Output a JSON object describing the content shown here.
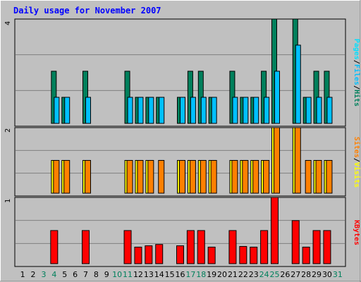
{
  "title": "Daily usage for November 2007",
  "colors": {
    "background": "#c0c0c0",
    "title": "#0000ff",
    "hits": "#00805c",
    "files": "#00c0ff",
    "pages": "#00e0ff",
    "sites": "#ff8000",
    "visits": "#ffff00",
    "kbytes": "#ff0000",
    "weekend_day": "#00805c",
    "weekday": "#000000",
    "grid": "#808080"
  },
  "chart_data": [
    {
      "type": "bar",
      "panel": "hits-files-pages",
      "legend": [
        "Pages",
        "Files",
        "Hits"
      ],
      "max_label": "4",
      "ylim": [
        0,
        4
      ],
      "categories": [
        "1",
        "2",
        "3",
        "4",
        "5",
        "6",
        "7",
        "8",
        "9",
        "10",
        "11",
        "12",
        "13",
        "14",
        "15",
        "16",
        "17",
        "18",
        "19",
        "20",
        "21",
        "22",
        "23",
        "24",
        "25",
        "26",
        "27",
        "28",
        "29",
        "30",
        "31"
      ],
      "series": [
        {
          "name": "Hits",
          "values": [
            0,
            0,
            0,
            2,
            1,
            0,
            2,
            0,
            0,
            0,
            2,
            1,
            1,
            1,
            0,
            1,
            2,
            2,
            1,
            0,
            2,
            1,
            1,
            2,
            4,
            0,
            4,
            1,
            2,
            2,
            0
          ]
        },
        {
          "name": "Files",
          "values": [
            0,
            0,
            0,
            1,
            1,
            0,
            1,
            0,
            0,
            0,
            1,
            1,
            1,
            1,
            0,
            1,
            1,
            1,
            1,
            0,
            1,
            1,
            1,
            1,
            2,
            0,
            3,
            1,
            1,
            1,
            0
          ]
        },
        {
          "name": "Pages",
          "values": [
            0,
            0,
            0,
            0,
            0,
            0,
            0,
            0,
            0,
            0,
            0,
            0,
            0,
            0,
            0,
            0,
            0,
            0,
            0,
            0,
            0,
            0,
            0,
            0,
            0,
            0,
            0,
            0,
            0,
            0,
            0
          ]
        }
      ]
    },
    {
      "type": "bar",
      "panel": "visits-sites",
      "legend": [
        "Sites",
        "Visits"
      ],
      "max_label": "2",
      "ylim": [
        0,
        2
      ],
      "categories": [
        "1",
        "2",
        "3",
        "4",
        "5",
        "6",
        "7",
        "8",
        "9",
        "10",
        "11",
        "12",
        "13",
        "14",
        "15",
        "16",
        "17",
        "18",
        "19",
        "20",
        "21",
        "22",
        "23",
        "24",
        "25",
        "26",
        "27",
        "28",
        "29",
        "30",
        "31"
      ],
      "series": [
        {
          "name": "Visits",
          "values": [
            0,
            0,
            0,
            1,
            1,
            0,
            1,
            0,
            0,
            0,
            1,
            1,
            1,
            0,
            0,
            1,
            1,
            1,
            1,
            0,
            1,
            1,
            1,
            1,
            2,
            0,
            2,
            0,
            1,
            1,
            0
          ]
        },
        {
          "name": "Sites",
          "values": [
            0,
            0,
            0,
            1,
            1,
            0,
            1,
            0,
            0,
            0,
            1,
            1,
            1,
            1,
            0,
            1,
            1,
            1,
            1,
            0,
            1,
            1,
            1,
            1,
            2,
            0,
            2,
            1,
            1,
            1,
            0
          ]
        }
      ]
    },
    {
      "type": "bar",
      "panel": "kbytes",
      "legend": [
        "KBytes"
      ],
      "max_label": "1",
      "ylim": [
        0,
        1
      ],
      "categories": [
        "1",
        "2",
        "3",
        "4",
        "5",
        "6",
        "7",
        "8",
        "9",
        "10",
        "11",
        "12",
        "13",
        "14",
        "15",
        "16",
        "17",
        "18",
        "19",
        "20",
        "21",
        "22",
        "23",
        "24",
        "25",
        "26",
        "27",
        "28",
        "29",
        "30",
        "31"
      ],
      "series": [
        {
          "name": "KBytes",
          "values": [
            0,
            0,
            0,
            0.5,
            0,
            0,
            0.5,
            0,
            0,
            0,
            0.5,
            0.25,
            0.27,
            0.29,
            0,
            0.27,
            0.5,
            0.5,
            0.25,
            0,
            0.5,
            0.26,
            0.25,
            0.5,
            1,
            0,
            0.65,
            0.25,
            0.5,
            0.5,
            0
          ]
        }
      ]
    }
  ],
  "days": [
    "1",
    "2",
    "3",
    "4",
    "5",
    "6",
    "7",
    "8",
    "9",
    "10",
    "11",
    "12",
    "13",
    "14",
    "15",
    "16",
    "17",
    "18",
    "19",
    "20",
    "21",
    "22",
    "23",
    "24",
    "25",
    "26",
    "27",
    "28",
    "29",
    "30",
    "31"
  ],
  "weekend_days": [
    "3",
    "4",
    "10",
    "11",
    "17",
    "18",
    "24",
    "25",
    "31"
  ]
}
